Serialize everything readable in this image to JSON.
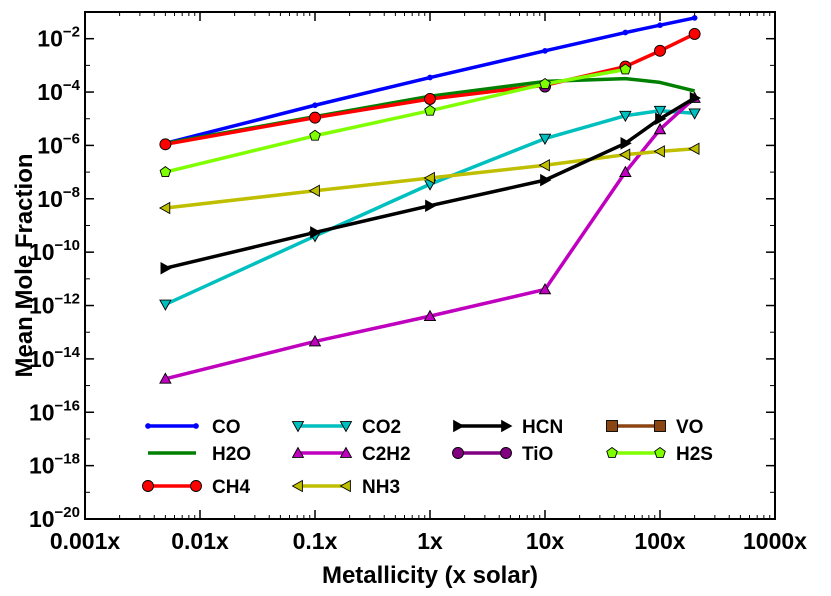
{
  "chart_data": {
    "type": "line",
    "xlabel": "Metallicity (x solar)",
    "ylabel": "Mean Mole Fraction",
    "xscale": "log",
    "yscale": "log",
    "xlim": [
      0.001,
      1000
    ],
    "ylim": [
      1e-20,
      0.1
    ],
    "grid": false,
    "legend_position": "lower-center",
    "x_ticks": [
      {
        "value": 0.001,
        "label": "0.001x"
      },
      {
        "value": 0.01,
        "label": "0.01x"
      },
      {
        "value": 0.1,
        "label": "0.1x"
      },
      {
        "value": 1,
        "label": "1x"
      },
      {
        "value": 10,
        "label": "10x"
      },
      {
        "value": 100,
        "label": "100x"
      },
      {
        "value": 1000,
        "label": "1000x"
      }
    ],
    "y_ticks": [
      {
        "value": 1e-20,
        "base": "10",
        "exp": "−20"
      },
      {
        "value": 1e-18,
        "base": "10",
        "exp": "−18"
      },
      {
        "value": 1e-16,
        "base": "10",
        "exp": "−16"
      },
      {
        "value": 1e-14,
        "base": "10",
        "exp": "−14"
      },
      {
        "value": 1e-12,
        "base": "10",
        "exp": "−12"
      },
      {
        "value": 1e-10,
        "base": "10",
        "exp": "−10"
      },
      {
        "value": 1e-08,
        "base": "10",
        "exp": "−8"
      },
      {
        "value": 1e-06,
        "base": "10",
        "exp": "−6"
      },
      {
        "value": 0.0001,
        "base": "10",
        "exp": "−4"
      },
      {
        "value": 0.01,
        "base": "10",
        "exp": "−2"
      }
    ],
    "series": [
      {
        "name": "CO",
        "color": "#0000ff",
        "marker": "point",
        "x": [
          0.005,
          0.1,
          1,
          10,
          50,
          100,
          200
        ],
        "y": [
          1.2e-06,
          3.2e-05,
          0.00035,
          0.0035,
          0.017,
          0.032,
          0.06
        ]
      },
      {
        "name": "H2O",
        "color": "#008000",
        "marker": "none",
        "x": [
          0.005,
          0.1,
          1,
          10,
          50,
          100,
          200
        ],
        "y": [
          1.2e-06,
          1.2e-05,
          7e-05,
          0.00025,
          0.00032,
          0.00023,
          0.00011
        ]
      },
      {
        "name": "CH4",
        "color": "#ff0000",
        "marker": "circle",
        "x": [
          0.005,
          0.1,
          1,
          10,
          50,
          100,
          200
        ],
        "y": [
          1.1e-06,
          1.1e-05,
          5.5e-05,
          0.00018,
          0.0009,
          0.0035,
          0.015
        ]
      },
      {
        "name": "CO2",
        "color": "#00bfbf",
        "marker": "triangle-down",
        "x": [
          0.005,
          0.1,
          1,
          10,
          50,
          100,
          200
        ],
        "y": [
          1.1e-12,
          4e-10,
          3.5e-08,
          1.8e-06,
          1.3e-05,
          2e-05,
          1.6e-05
        ]
      },
      {
        "name": "C2H2",
        "color": "#bf00bf",
        "marker": "triangle-up",
        "x": [
          0.005,
          0.1,
          1,
          10,
          50,
          100,
          200
        ],
        "y": [
          1.8e-15,
          4.5e-14,
          4e-13,
          4e-12,
          1e-07,
          4e-06,
          6e-05
        ]
      },
      {
        "name": "NH3",
        "color": "#bfbf00",
        "marker": "triangle-left",
        "x": [
          0.005,
          0.1,
          1,
          10,
          50,
          100,
          200
        ],
        "y": [
          4.5e-09,
          2e-08,
          6e-08,
          1.8e-07,
          4.5e-07,
          6e-07,
          7.5e-07
        ]
      },
      {
        "name": "HCN",
        "color": "#000000",
        "marker": "triangle-right",
        "x": [
          0.005,
          0.1,
          1,
          10,
          50,
          100,
          200
        ],
        "y": [
          2.5e-11,
          5.5e-10,
          5.5e-09,
          5e-08,
          1.2e-06,
          1e-05,
          6e-05
        ]
      },
      {
        "name": "TiO",
        "color": "#800080",
        "marker": "circle",
        "x": [
          10
        ],
        "y": [
          0.00016
        ]
      },
      {
        "name": "VO",
        "color": "#8b4513",
        "marker": "square",
        "x": [],
        "y": []
      },
      {
        "name": "H2S",
        "color": "#7fff00",
        "marker": "pentagon",
        "x": [
          0.005,
          0.1,
          1,
          10,
          50
        ],
        "y": [
          1e-07,
          2.3e-06,
          2e-05,
          0.0002,
          0.0007
        ]
      }
    ],
    "legend": [
      [
        "CO",
        "CO2",
        "HCN",
        "VO"
      ],
      [
        "H2O",
        "C2H2",
        "TiO",
        "H2S"
      ],
      [
        "CH4",
        "NH3"
      ]
    ]
  }
}
